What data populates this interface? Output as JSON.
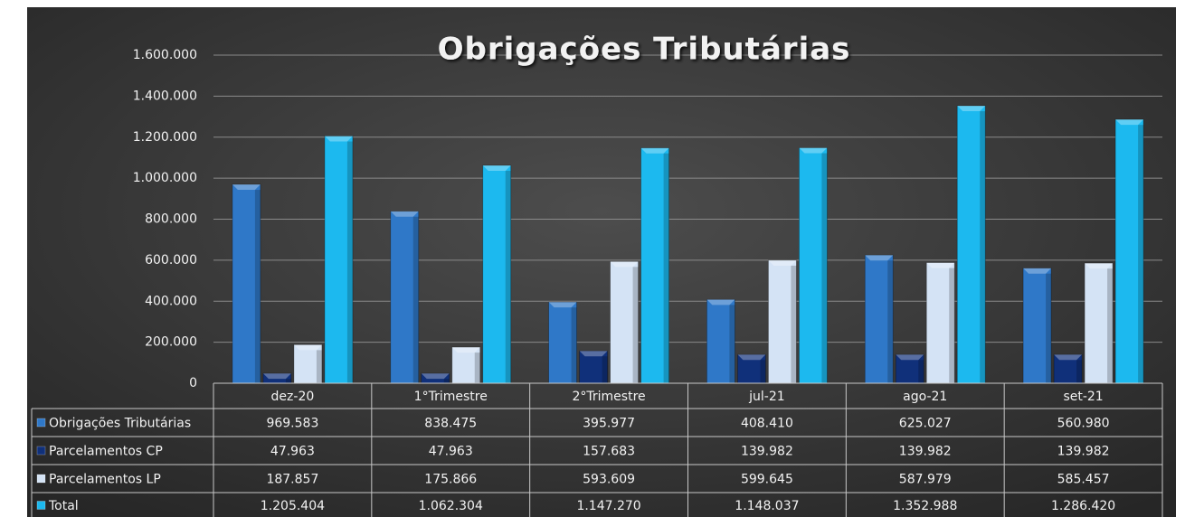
{
  "chart_data": {
    "type": "bar",
    "title": "Obrigações Tributárias",
    "categories": [
      "dez-20",
      "1°Trimestre",
      "2°Trimestre",
      "jul-21",
      "ago-21",
      "set-21"
    ],
    "series": [
      {
        "name": "Obrigações Tributárias",
        "color": "#2f78c8",
        "values": [
          969583,
          838475,
          395977,
          408410,
          625027,
          560980
        ],
        "value_labels": [
          "969.583",
          "838.475",
          "395.977",
          "408.410",
          "625.027",
          "560.980"
        ]
      },
      {
        "name": "Parcelamentos CP",
        "color": "#10307a",
        "values": [
          47963,
          47963,
          157683,
          139982,
          139982,
          139982
        ],
        "value_labels": [
          "47.963",
          "47.963",
          "157.683",
          "139.982",
          "139.982",
          "139.982"
        ]
      },
      {
        "name": "Parcelamentos LP",
        "color": "#d4e3f5",
        "values": [
          187857,
          175866,
          593609,
          599645,
          587979,
          585457
        ],
        "value_labels": [
          "187.857",
          "175.866",
          "593.609",
          "599.645",
          "587.979",
          "585.457"
        ]
      },
      {
        "name": "Total",
        "color": "#1cb9ef",
        "values": [
          1205404,
          1062304,
          1147270,
          1148037,
          1352988,
          1286420
        ],
        "value_labels": [
          "1.205.404",
          "1.062.304",
          "1.147.270",
          "1.148.037",
          "1.352.988",
          "1.286.420"
        ]
      }
    ],
    "ylim": [
      0,
      1600000
    ],
    "yticks": [
      0,
      {
        "value": 200000,
        "label": "200.000"
      },
      {
        "value": 400000,
        "label": "400.000"
      },
      {
        "value": 600000,
        "label": "600.000"
      },
      {
        "value": 800000,
        "label": "800.000"
      },
      {
        "value": 1000000,
        "label": "1.000.000"
      },
      {
        "value": 1200000,
        "label": "1.200.000"
      },
      {
        "value": 1400000,
        "label": "1.400.000"
      },
      {
        "value": 1600000,
        "label": "1.600.000"
      }
    ],
    "grid": true
  }
}
